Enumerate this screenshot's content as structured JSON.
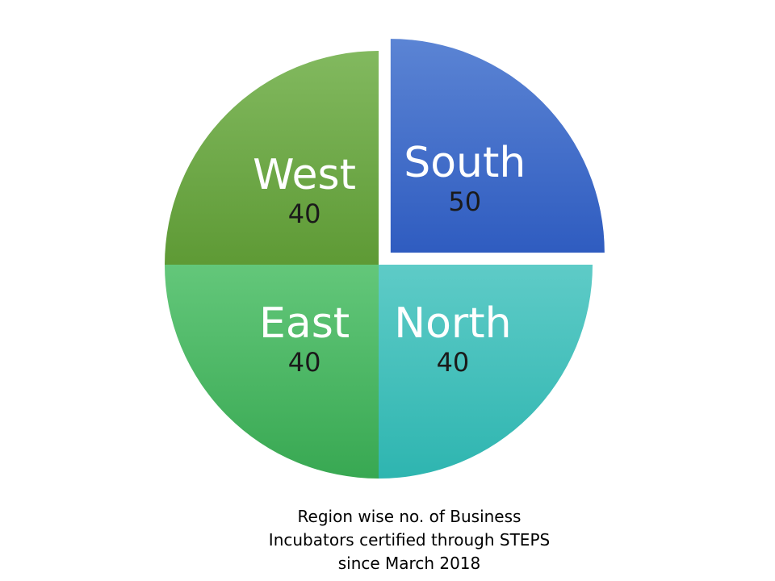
{
  "chart_data": {
    "type": "pie",
    "title": "",
    "slices": [
      {
        "label": "South",
        "value": 50,
        "color_top": "#5b84d4",
        "color_bottom": "#2f5cc0",
        "exploded": true
      },
      {
        "label": "North",
        "value": 40,
        "color_top": "#5ecbc7",
        "color_bottom": "#2eb5b0",
        "exploded": false
      },
      {
        "label": "East",
        "value": 40,
        "color_top": "#63c77a",
        "color_bottom": "#38a852",
        "exploded": false
      },
      {
        "label": "West",
        "value": 40,
        "color_top": "#82b95f",
        "color_bottom": "#5e9a35",
        "exploded": false
      }
    ],
    "legend": "none",
    "data_labels": "category name and value inside slice"
  },
  "caption": {
    "lines": [
      "Region wise no. of Business",
      "Incubators certified through STEPS",
      "since March 2018"
    ]
  }
}
